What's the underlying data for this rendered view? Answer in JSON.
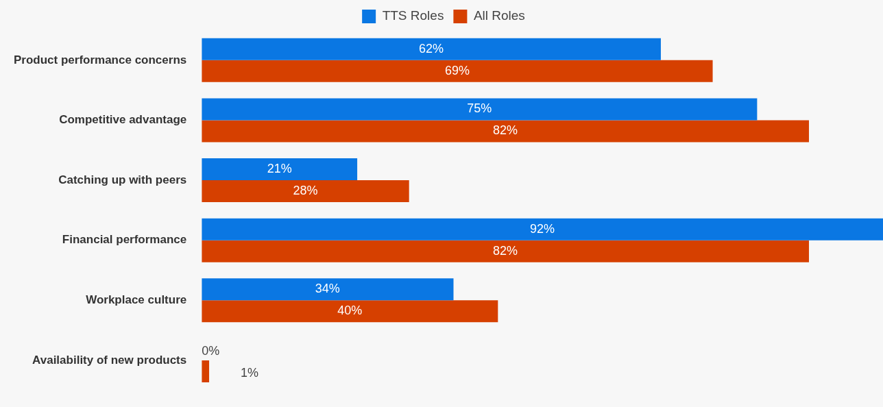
{
  "chart_data": {
    "type": "bar",
    "orientation": "horizontal",
    "categories": [
      "Product performance concerns",
      "Competitive advantage",
      "Catching up with peers",
      "Financial performance",
      "Workplace culture",
      "Availability of new products"
    ],
    "series": [
      {
        "name": "TTS Roles",
        "color": "#0a77e3",
        "values": [
          62,
          75,
          21,
          92,
          34,
          0
        ],
        "value_labels": [
          "62%",
          "75%",
          "21%",
          "92%",
          "34%",
          "0%"
        ]
      },
      {
        "name": "All Roles",
        "color": "#d64000",
        "values": [
          69,
          82,
          28,
          82,
          40,
          1
        ],
        "value_labels": [
          "69%",
          "82%",
          "28%",
          "82%",
          "40%",
          "1%"
        ]
      }
    ],
    "legend": "top"
  }
}
